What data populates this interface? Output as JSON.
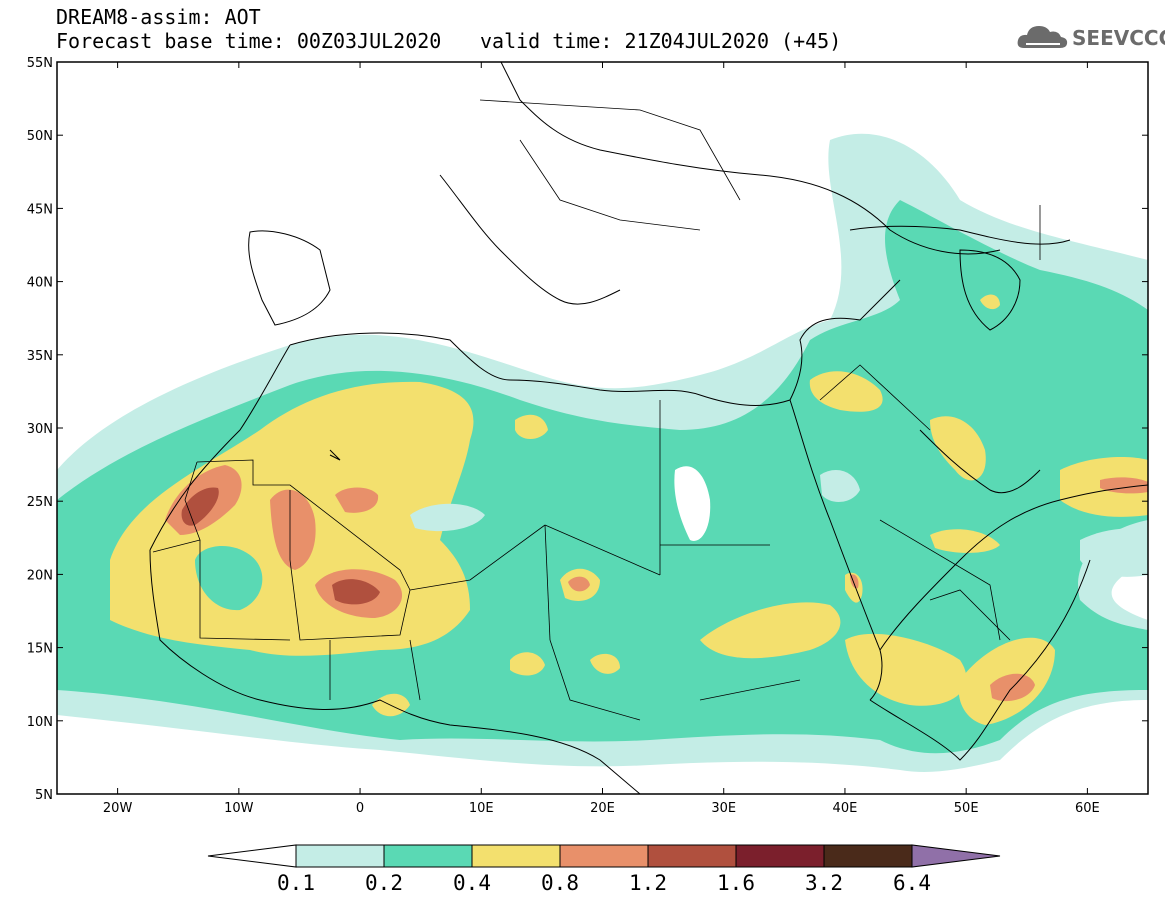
{
  "header": {
    "model_line": "DREAM8-assim: AOT",
    "base_time_line": "Forecast base time: 00Z03JUL2020",
    "valid_time_line": "valid time: 21Z04JUL2020 (+45)",
    "logo_text": "SEEVCCC"
  },
  "map": {
    "lon_range": [
      -25,
      65
    ],
    "lat_range": [
      5,
      55
    ],
    "lon_labels": [
      "20W",
      "10W",
      "0",
      "10E",
      "20E",
      "30E",
      "40E",
      "50E",
      "60E"
    ],
    "lat_labels": [
      "55N",
      "50N",
      "45N",
      "40N",
      "35N",
      "30N",
      "25N",
      "20N",
      "15N",
      "10N",
      "5N"
    ],
    "icons": [
      "cloud-logo-icon"
    ]
  },
  "legend": {
    "labels": [
      "0.1",
      "0.2",
      "0.4",
      "0.8",
      "1.2",
      "1.6",
      "3.2",
      "6.4"
    ],
    "colors": [
      "#ffffff",
      "#c4ede6",
      "#5ad9b4",
      "#f3e06e",
      "#e8906a",
      "#b0503e",
      "#7b1f2c",
      "#4a2a1a",
      "#9070a8"
    ]
  }
}
